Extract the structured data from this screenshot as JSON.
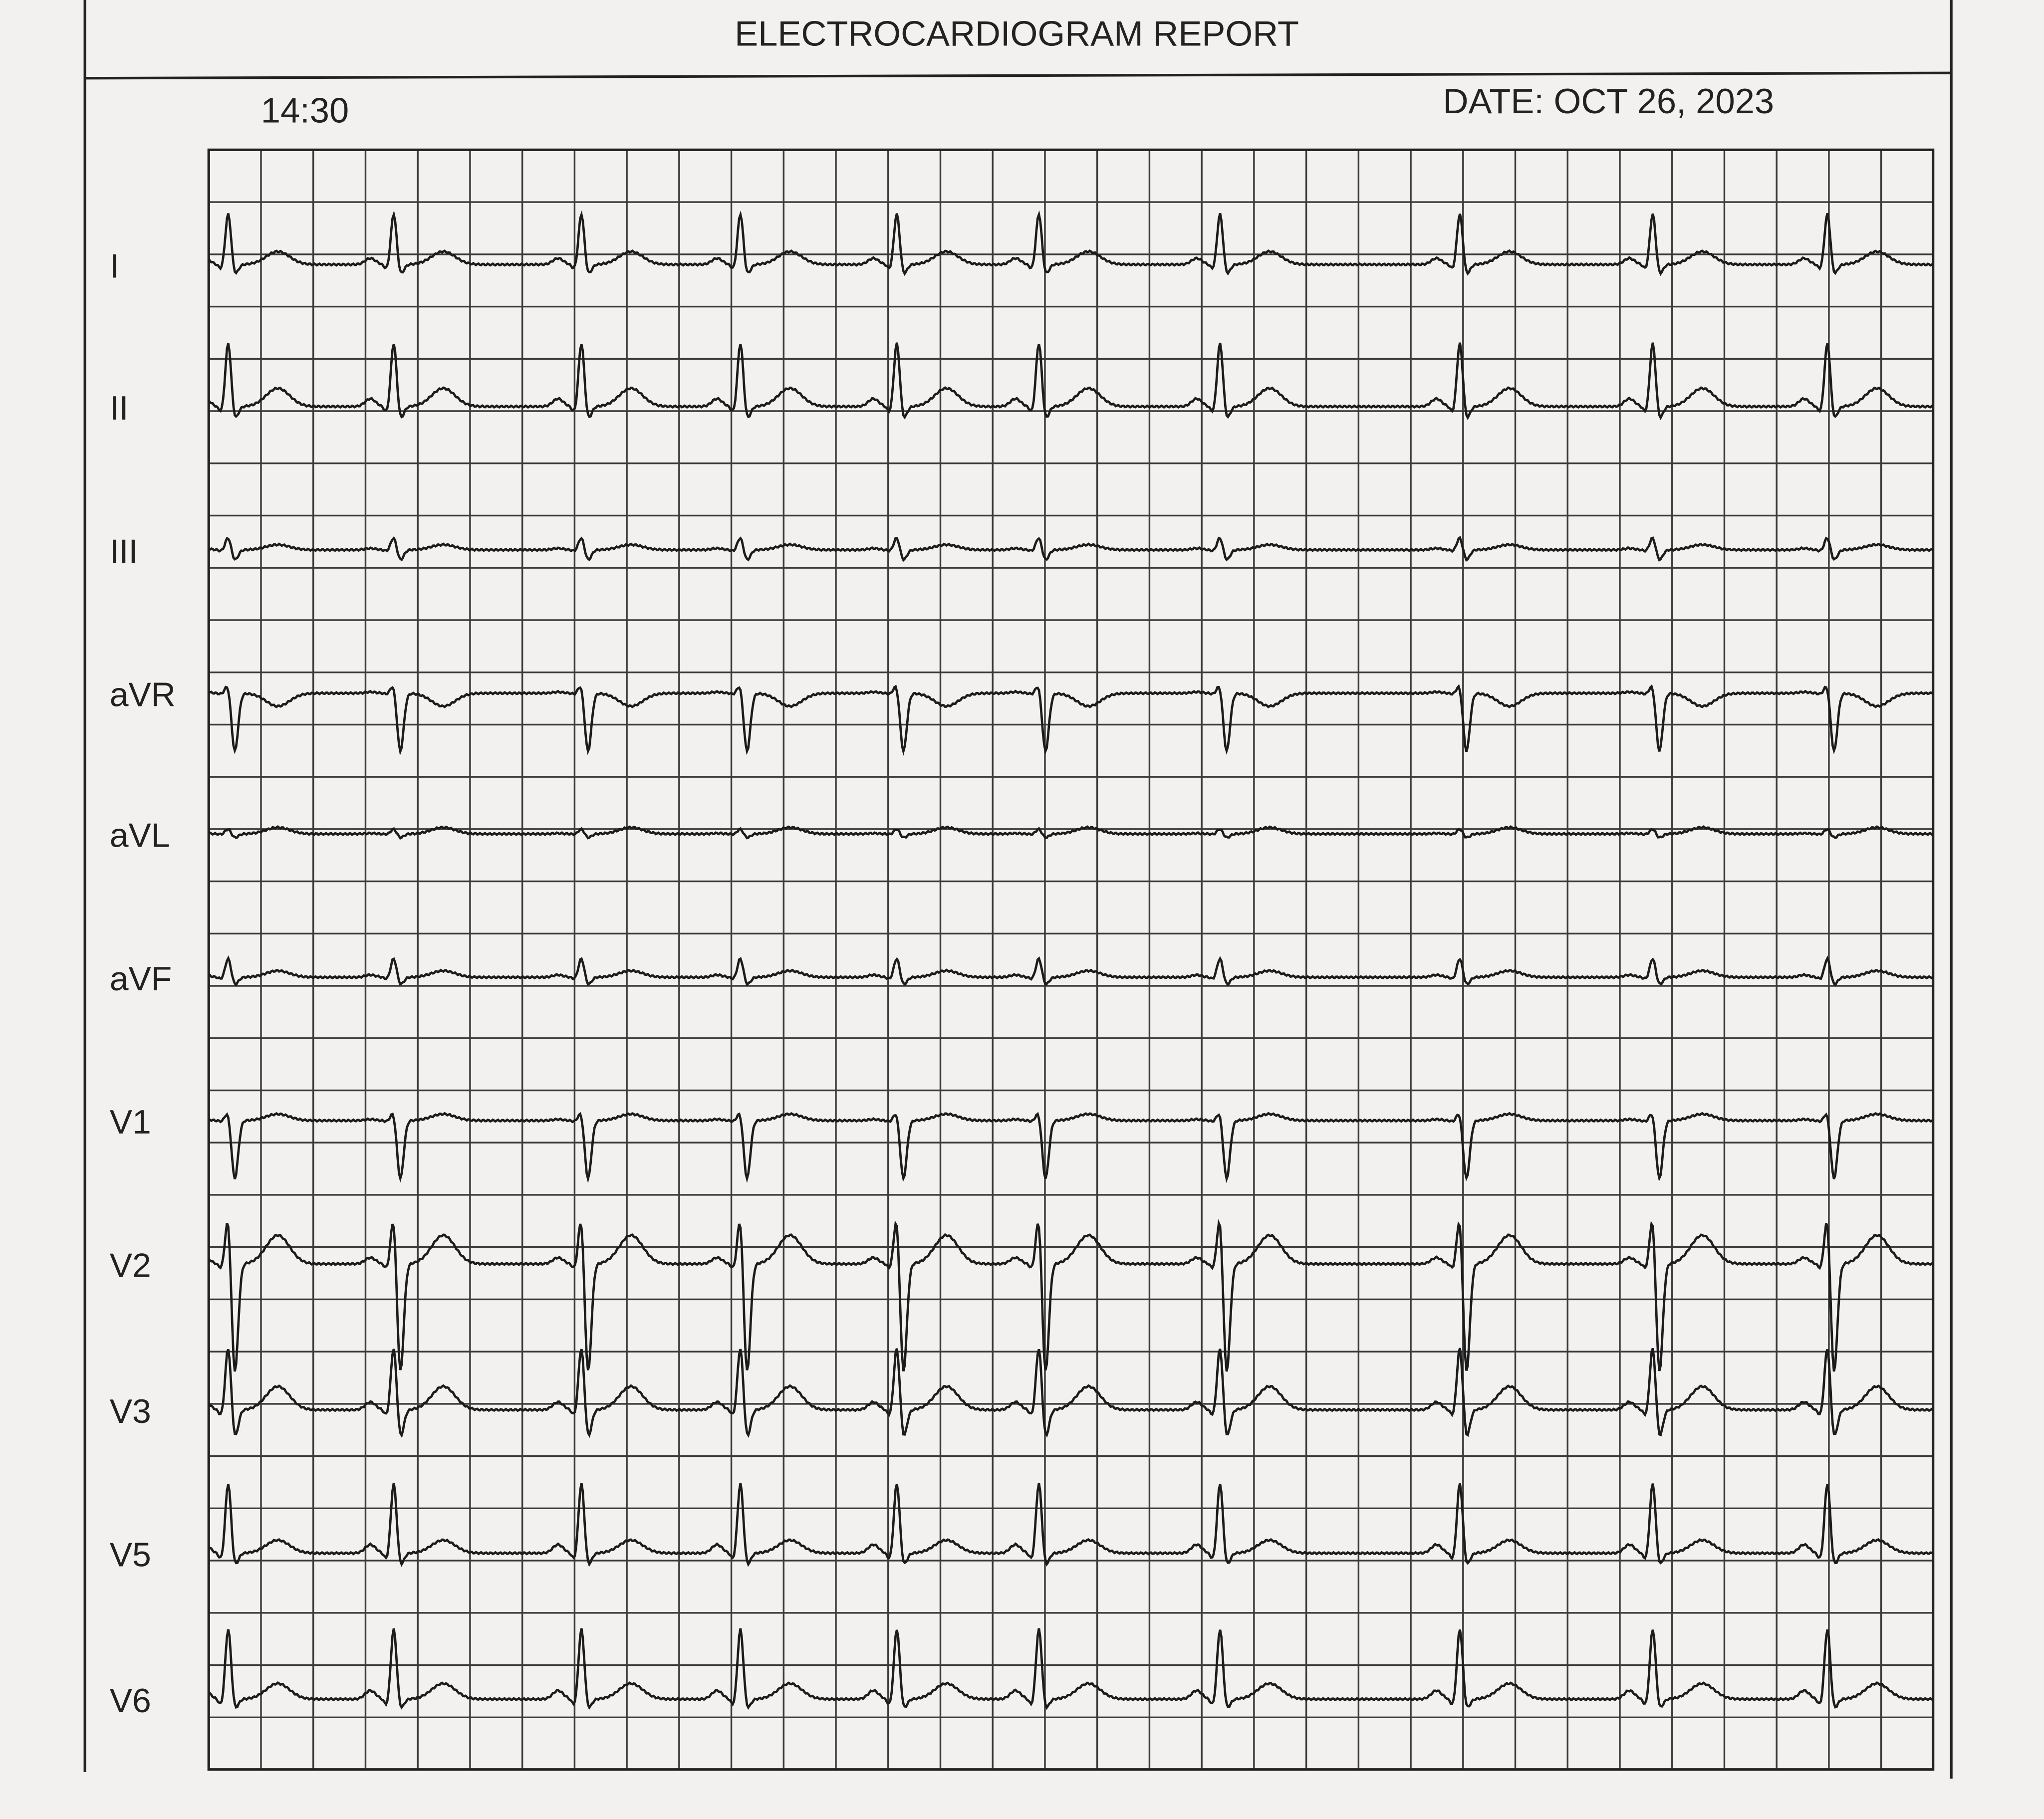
{
  "header": {
    "title": "ELECTROCARDIOGRAM REPORT",
    "time": "14:30",
    "date": "DATE: OCT 26, 2023"
  },
  "leads": [
    "I",
    "II",
    "III",
    "aVR",
    "aVL",
    "aVF",
    "V1",
    "V2",
    "V3",
    "V5",
    "V6"
  ]
}
